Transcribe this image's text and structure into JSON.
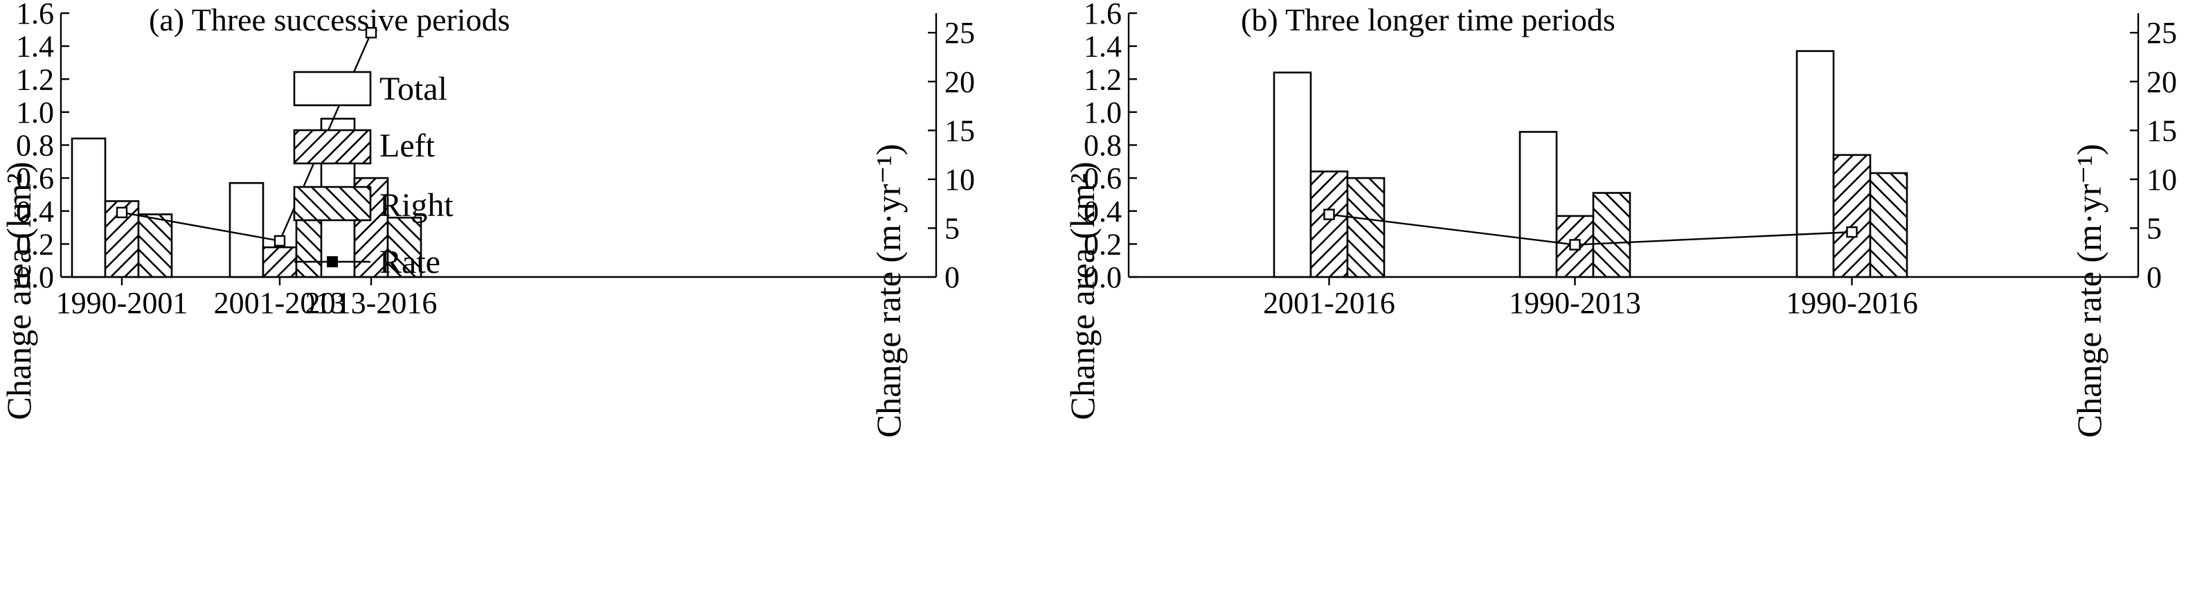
{
  "colors": {
    "ink": "#000000",
    "background": "#ffffff",
    "total_fill": "#ffffff"
  },
  "legend": {
    "entries": [
      {
        "key": "total",
        "label": "Total",
        "pattern": "none"
      },
      {
        "key": "left",
        "label": "Left",
        "pattern": "hatch-forward"
      },
      {
        "key": "right",
        "label": "Right",
        "pattern": "hatch-backward"
      },
      {
        "key": "rate",
        "label": "Rate",
        "pattern": "line-marker"
      }
    ]
  },
  "chart_data": [
    {
      "type": "bar",
      "title": "(a) Three successive periods",
      "categories": [
        "1990-2001",
        "2001-2013",
        "2013-2016"
      ],
      "ylabel": "Change area (km²)",
      "ylim": [
        0,
        1.6
      ],
      "yticks": [
        "0.0",
        "0.2",
        "0.4",
        "0.6",
        "0.8",
        "1.0",
        "1.2",
        "1.4",
        "1.6"
      ],
      "y2label": "Change rate (m·yr⁻¹)",
      "y2lim": [
        0,
        27
      ],
      "y2ticks": [
        "0",
        "5",
        "10",
        "15",
        "20",
        "25"
      ],
      "legend_position": "upper-left",
      "series": [
        {
          "name": "Total",
          "values": [
            0.84,
            0.57,
            0.96
          ],
          "axis": "left"
        },
        {
          "name": "Left",
          "values": [
            0.46,
            0.18,
            0.6
          ],
          "axis": "left"
        },
        {
          "name": "Right",
          "values": [
            0.38,
            0.39,
            0.36
          ],
          "axis": "left"
        },
        {
          "name": "Rate",
          "values": [
            6.6,
            3.7,
            25.0
          ],
          "axis": "right",
          "type": "line"
        }
      ]
    },
    {
      "type": "bar",
      "title": "(b) Three longer time periods",
      "categories": [
        "2001-2016",
        "1990-2013",
        "1990-2016"
      ],
      "ylabel": "Change area (km²)",
      "ylim": [
        0,
        1.6
      ],
      "yticks": [
        "0.0",
        "0.2",
        "0.4",
        "0.6",
        "0.8",
        "1.0",
        "1.2",
        "1.4",
        "1.6"
      ],
      "y2label": "Change rate (m·yr⁻¹)",
      "y2lim": [
        0,
        27
      ],
      "y2ticks": [
        "0",
        "5",
        "10",
        "15",
        "20",
        "25"
      ],
      "series": [
        {
          "name": "Total",
          "values": [
            1.24,
            0.88,
            1.37
          ],
          "axis": "left"
        },
        {
          "name": "Left",
          "values": [
            0.64,
            0.37,
            0.74
          ],
          "axis": "left"
        },
        {
          "name": "Right",
          "values": [
            0.6,
            0.51,
            0.63
          ],
          "axis": "left"
        },
        {
          "name": "Rate",
          "values": [
            6.4,
            3.3,
            4.6
          ],
          "axis": "right",
          "type": "line"
        }
      ]
    }
  ]
}
